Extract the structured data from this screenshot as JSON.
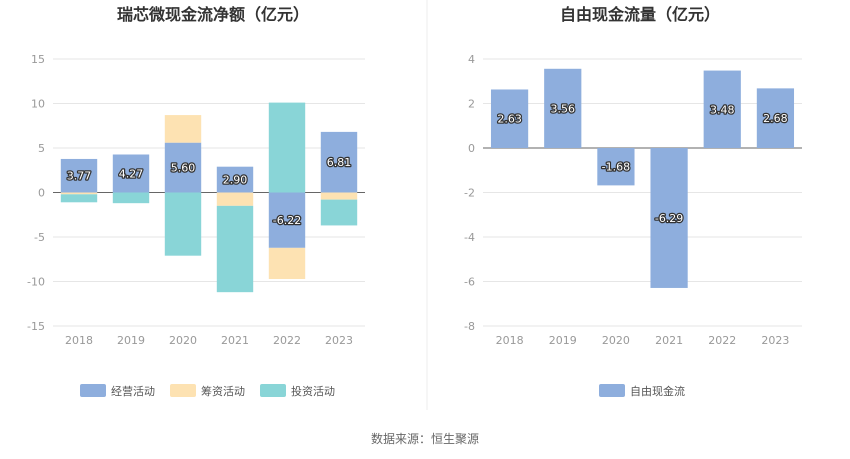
{
  "colors": {
    "operating": "#8eaedd",
    "financing": "#fde2b2",
    "investing": "#89d5d7",
    "free_cash_flow": "#8eaedd"
  },
  "chart_data": [
    {
      "type": "bar",
      "stacked": true,
      "title": "瑞芯微现金流净额（亿元）",
      "categories": [
        "2018",
        "2019",
        "2020",
        "2021",
        "2022",
        "2023"
      ],
      "ylim": [
        -15,
        15
      ],
      "yticks": [
        15,
        10,
        5,
        0,
        -5,
        -10,
        -15
      ],
      "grid": true,
      "legend": "bottom",
      "series": [
        {
          "name": "经营活动",
          "color_key": "operating",
          "values": [
            3.77,
            4.27,
            5.6,
            2.9,
            -6.22,
            6.81
          ],
          "labeled": true
        },
        {
          "name": "筹资活动",
          "color_key": "financing",
          "values": [
            -0.2,
            0,
            3.1,
            -1.5,
            -3.5,
            -0.8
          ]
        },
        {
          "name": "投资活动",
          "color_key": "investing",
          "values": [
            -0.9,
            -1.2,
            -7.1,
            -9.7,
            10.1,
            -2.9
          ]
        }
      ],
      "data_labels": [
        "3.77",
        "4.27",
        "5.60",
        "2.90",
        "-6.22",
        "6.81"
      ]
    },
    {
      "type": "bar",
      "title": "自由现金流量（亿元）",
      "categories": [
        "2018",
        "2019",
        "2020",
        "2021",
        "2022",
        "2023"
      ],
      "ylim": [
        -8,
        4
      ],
      "yticks": [
        4,
        2,
        0,
        -2,
        -4,
        -6,
        -8
      ],
      "grid": true,
      "legend": "bottom",
      "series": [
        {
          "name": "自由现金流",
          "color_key": "free_cash_flow",
          "values": [
            2.63,
            3.56,
            -1.68,
            -6.29,
            3.48,
            2.68
          ],
          "labeled": true
        }
      ],
      "data_labels": [
        "2.63",
        "3.56",
        "-1.68",
        "-6.29",
        "3.48",
        "2.68"
      ]
    }
  ],
  "footer": {
    "source": "数据来源：恒生聚源"
  }
}
